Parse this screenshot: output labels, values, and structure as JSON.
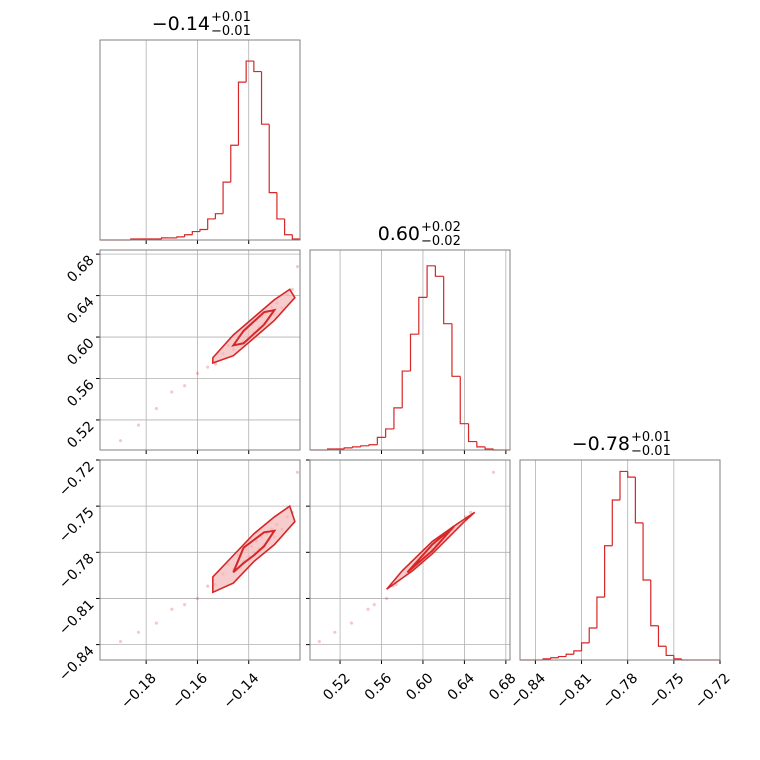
{
  "chart_data": {
    "type": "corner",
    "color": "#d62728",
    "grid": true,
    "params": [
      {
        "lim": [
          -0.198,
          -0.12
        ],
        "ticks": [
          {
            "value": -0.18,
            "label": "−0.18"
          },
          {
            "value": -0.16,
            "label": "−0.16"
          },
          {
            "value": -0.14,
            "label": "−0.14"
          }
        ],
        "title": {
          "value": "−0.14",
          "upper": "+0.01",
          "lower": "−0.01"
        }
      },
      {
        "lim": [
          0.491,
          0.684
        ],
        "ticks": [
          0.52,
          0.56,
          {
            "value": 0.6,
            "label": "0.60"
          },
          0.64,
          0.68
        ],
        "title": {
          "value": "0.60",
          "upper": "+0.02",
          "lower": "−0.02"
        }
      },
      {
        "lim": [
          -0.85,
          -0.72
        ],
        "ticks": [
          {
            "value": -0.84,
            "label": "−0.84"
          },
          {
            "value": -0.81,
            "label": "−0.81"
          },
          {
            "value": -0.78,
            "label": "−0.78"
          },
          {
            "value": -0.75,
            "label": "−0.75"
          },
          {
            "value": -0.72,
            "label": "−0.72"
          }
        ],
        "title": {
          "value": "−0.78",
          "upper": "+0.01",
          "lower": "−0.01"
        }
      }
    ],
    "hists": [
      {
        "bins": [
          -0.198,
          -0.195,
          -0.192,
          -0.189,
          -0.186,
          -0.183,
          -0.18,
          -0.177,
          -0.174,
          -0.171,
          -0.168,
          -0.165,
          -0.162,
          -0.159,
          -0.156,
          -0.153,
          -0.15,
          -0.147,
          -0.144,
          -0.141,
          -0.138,
          -0.135,
          -0.132,
          -0.129,
          -0.126,
          -0.123,
          -0.12
        ],
        "counts": [
          0,
          0,
          0,
          0,
          1,
          1,
          1,
          1,
          2,
          2,
          3,
          5,
          8,
          10,
          20,
          25,
          55,
          90,
          150,
          170,
          160,
          110,
          45,
          20,
          5,
          1
        ],
        "ylim": [
          0,
          190
        ]
      },
      {
        "bins": [
          0.492,
          0.5,
          0.508,
          0.516,
          0.524,
          0.532,
          0.54,
          0.548,
          0.556,
          0.564,
          0.572,
          0.58,
          0.588,
          0.596,
          0.604,
          0.612,
          0.62,
          0.628,
          0.636,
          0.644,
          0.652,
          0.66,
          0.668,
          0.676,
          0.684
        ],
        "counts": [
          0,
          0,
          1,
          1,
          2,
          3,
          4,
          5,
          12,
          20,
          40,
          75,
          110,
          145,
          175,
          165,
          120,
          70,
          25,
          8,
          3,
          1,
          0,
          0
        ],
        "ylim": [
          0,
          190
        ]
      },
      {
        "bins": [
          -0.85,
          -0.845,
          -0.84,
          -0.835,
          -0.83,
          -0.825,
          -0.82,
          -0.815,
          -0.81,
          -0.805,
          -0.8,
          -0.795,
          -0.79,
          -0.785,
          -0.78,
          -0.775,
          -0.77,
          -0.765,
          -0.76,
          -0.755,
          -0.75,
          -0.745,
          -0.74,
          -0.735,
          -0.73,
          -0.725,
          -0.72
        ],
        "counts": [
          0,
          0,
          0,
          1,
          2,
          3,
          5,
          8,
          15,
          28,
          55,
          100,
          140,
          165,
          160,
          120,
          70,
          30,
          12,
          4,
          1,
          0,
          0,
          0,
          0,
          0
        ],
        "ylim": [
          0,
          175
        ]
      }
    ],
    "samples": [
      [
        -0.19,
        -0.183,
        -0.176,
        -0.17,
        -0.165,
        -0.16,
        -0.156,
        -0.153,
        -0.15,
        -0.148,
        -0.146,
        -0.144,
        -0.142,
        -0.141,
        -0.14,
        -0.139,
        -0.138,
        -0.137,
        -0.136,
        -0.135,
        -0.134,
        -0.133,
        -0.132,
        -0.131,
        -0.13,
        -0.129,
        -0.127,
        -0.125,
        -0.123,
        -0.121
      ],
      [
        0.5,
        0.515,
        0.531,
        0.547,
        0.553,
        0.565,
        0.571,
        0.574,
        0.584,
        0.592,
        0.588,
        0.601,
        0.596,
        0.608,
        0.6,
        0.612,
        0.604,
        0.616,
        0.609,
        0.62,
        0.613,
        0.625,
        0.618,
        0.629,
        0.622,
        0.633,
        0.628,
        0.641,
        0.646,
        0.668
      ],
      [
        -0.838,
        -0.832,
        -0.826,
        -0.817,
        -0.814,
        -0.81,
        -0.802,
        -0.801,
        -0.794,
        -0.788,
        -0.791,
        -0.782,
        -0.786,
        -0.778,
        -0.783,
        -0.776,
        -0.78,
        -0.773,
        -0.778,
        -0.77,
        -0.775,
        -0.768,
        -0.772,
        -0.765,
        -0.77,
        -0.762,
        -0.765,
        -0.757,
        -0.754,
        -0.728
      ]
    ],
    "contours": [
      {
        "x_param": 0,
        "y_param": 1,
        "rings": [
          {
            "x": [
              -0.154,
              -0.146,
              -0.138,
              -0.13,
              -0.122,
              -0.124,
              -0.13,
              -0.138,
              -0.146,
              -0.154
            ],
            "y": [
              0.575,
              0.582,
              0.599,
              0.616,
              0.638,
              0.646,
              0.636,
              0.619,
              0.602,
              0.58
            ]
          },
          {
            "x": [
              -0.146,
              -0.142,
              -0.138,
              -0.134,
              -0.13,
              -0.134,
              -0.138,
              -0.142
            ],
            "y": [
              0.592,
              0.594,
              0.603,
              0.612,
              0.626,
              0.624,
              0.615,
              0.606
            ]
          }
        ]
      },
      {
        "x_param": 0,
        "y_param": 2,
        "rings": [
          {
            "x": [
              -0.154,
              -0.146,
              -0.138,
              -0.13,
              -0.122,
              -0.124,
              -0.13,
              -0.138,
              -0.146,
              -0.154
            ],
            "y": [
              -0.806,
              -0.8,
              -0.786,
              -0.775,
              -0.76,
              -0.75,
              -0.757,
              -0.768,
              -0.782,
              -0.796
            ]
          },
          {
            "x": [
              -0.146,
              -0.142,
              -0.138,
              -0.134,
              -0.13,
              -0.134,
              -0.138,
              -0.142
            ],
            "y": [
              -0.793,
              -0.787,
              -0.782,
              -0.776,
              -0.766,
              -0.767,
              -0.772,
              -0.777
            ]
          }
        ]
      },
      {
        "x_param": 1,
        "y_param": 2,
        "rings": [
          {
            "x": [
              0.565,
              0.59,
              0.609,
              0.64,
              0.65,
              0.632,
              0.609,
              0.58
            ],
            "y": [
              -0.804,
              -0.792,
              -0.781,
              -0.76,
              -0.754,
              -0.762,
              -0.773,
              -0.792
            ]
          },
          {
            "x": [
              0.585,
              0.609,
              0.63,
              0.609
            ],
            "y": [
              -0.793,
              -0.779,
              -0.763,
              -0.775
            ]
          }
        ]
      }
    ]
  }
}
